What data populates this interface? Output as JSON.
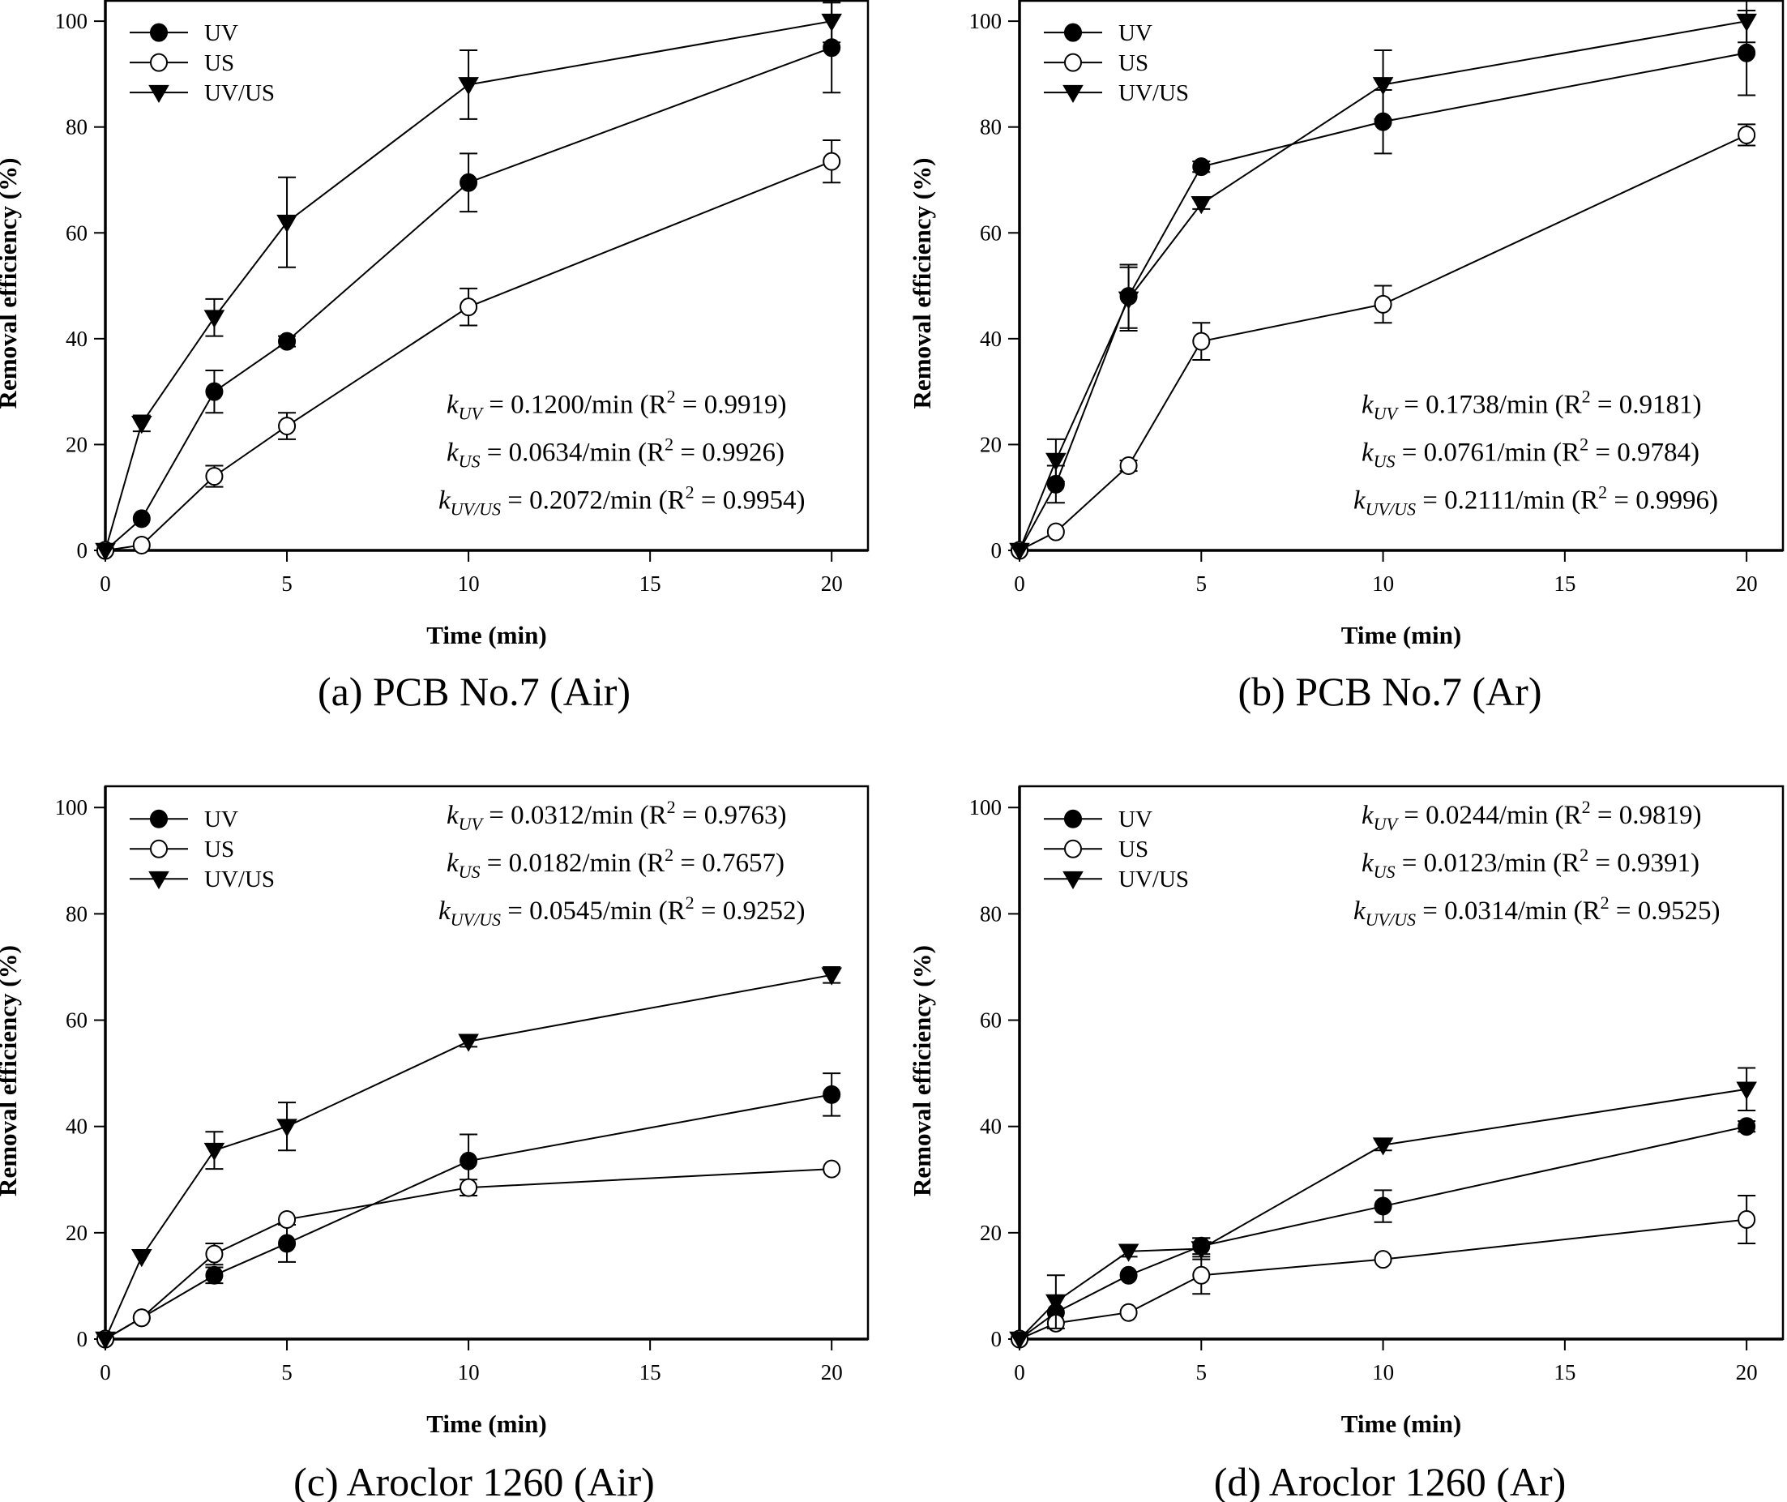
{
  "chart_data": [
    {
      "type": "line",
      "caption": "(a)  PCB  No.7  (Air)",
      "xlabel": "Time (min)",
      "ylabel": "Removal efficiency (%)",
      "xlim": [
        0,
        21
      ],
      "ylim": [
        0,
        104
      ],
      "xticks": [
        0,
        5,
        10,
        15,
        20
      ],
      "yticks": [
        0,
        20,
        40,
        60,
        80,
        100
      ],
      "legend_position": "top-left",
      "annotation_position": "bottom-right",
      "x": [
        0,
        1,
        3,
        5,
        10,
        20
      ],
      "series": [
        {
          "name": "UV",
          "marker": "filled-circle",
          "values": [
            0,
            6,
            30,
            39.5,
            69.5,
            95
          ],
          "errors": [
            0,
            0,
            4,
            1,
            5.5,
            8.5
          ]
        },
        {
          "name": "US",
          "marker": "open-circle",
          "values": [
            0,
            1,
            14,
            23.5,
            46,
            73.5
          ],
          "errors": [
            0,
            0,
            2,
            2.5,
            3.5,
            4
          ]
        },
        {
          "name": "UV/US",
          "marker": "filled-triangle-down",
          "values": [
            0,
            24,
            44,
            62,
            88,
            100
          ],
          "errors": [
            0,
            1.5,
            3.5,
            8.5,
            6.5,
            4
          ]
        }
      ],
      "annotations": [
        {
          "k_sub": "UV",
          "k": "= 0.1200/min",
          "r2": "= 0.9919)"
        },
        {
          "k_sub": "US",
          "k": "= 0.0634/min",
          "r2": "= 0.9926)"
        },
        {
          "k_sub": "UV/US",
          "k": "= 0.2072/min",
          "r2": "= 0.9954)"
        }
      ]
    },
    {
      "type": "line",
      "caption": "(b)  PCB  No.7  (Ar)",
      "xlabel": "Time (min)",
      "ylabel": "Removal efficiency (%)",
      "xlim": [
        0,
        21
      ],
      "ylim": [
        0,
        104
      ],
      "xticks": [
        0,
        5,
        10,
        15,
        20
      ],
      "yticks": [
        0,
        20,
        40,
        60,
        80,
        100
      ],
      "legend_position": "top-left",
      "annotation_position": "bottom-right",
      "x": [
        0,
        1,
        3,
        5,
        10,
        20
      ],
      "series": [
        {
          "name": "UV",
          "marker": "filled-circle",
          "values": [
            0,
            12.5,
            48,
            72.5,
            81,
            94
          ],
          "errors": [
            0,
            3.5,
            6,
            1,
            6,
            8
          ]
        },
        {
          "name": "US",
          "marker": "open-circle",
          "values": [
            0,
            3.5,
            16,
            39.5,
            46.5,
            78.5
          ],
          "errors": [
            0,
            0,
            1,
            3.5,
            3.5,
            2
          ]
        },
        {
          "name": "UV/US",
          "marker": "filled-triangle-down",
          "values": [
            0,
            17,
            47.5,
            65.5,
            88,
            100
          ],
          "errors": [
            0,
            4,
            6,
            1,
            6.5,
            4
          ]
        }
      ],
      "annotations": [
        {
          "k_sub": "UV",
          "k": "= 0.1738/min",
          "r2": "= 0.9181)"
        },
        {
          "k_sub": "US",
          "k": "= 0.0761/min",
          "r2": "= 0.9784)"
        },
        {
          "k_sub": "UV/US",
          "k": "= 0.2111/min",
          "r2": "= 0.9996)"
        }
      ]
    },
    {
      "type": "line",
      "caption": "(c)  Aroclor  1260  (Air)",
      "xlabel": "Time (min)",
      "ylabel": "Removal efficiency (%)",
      "xlim": [
        0,
        21
      ],
      "ylim": [
        0,
        104
      ],
      "xticks": [
        0,
        5,
        10,
        15,
        20
      ],
      "yticks": [
        0,
        20,
        40,
        60,
        80,
        100
      ],
      "legend_position": "top-left",
      "annotation_position": "top-right",
      "x": [
        0,
        1,
        3,
        5,
        10,
        20
      ],
      "series": [
        {
          "name": "UV",
          "marker": "filled-circle",
          "values": [
            0,
            4,
            12,
            18,
            33.5,
            46
          ],
          "errors": [
            0,
            0,
            1.5,
            3.5,
            5,
            4
          ]
        },
        {
          "name": "US",
          "marker": "open-circle",
          "values": [
            0,
            4,
            16,
            22.5,
            28.5,
            32
          ],
          "errors": [
            0,
            0,
            2,
            0,
            1.5,
            0
          ]
        },
        {
          "name": "UV/US",
          "marker": "filled-triangle-down",
          "values": [
            0,
            15.5,
            35.5,
            40,
            56,
            68.5
          ],
          "errors": [
            0,
            0,
            3.5,
            4.5,
            1,
            1.5
          ]
        }
      ],
      "annotations": [
        {
          "k_sub": "UV",
          "k": "= 0.0312/min",
          "r2": "= 0.9763)"
        },
        {
          "k_sub": "US",
          "k": "= 0.0182/min",
          "r2": "= 0.7657)"
        },
        {
          "k_sub": "UV/US",
          "k": "= 0.0545/min",
          "r2": "= 0.9252)"
        }
      ]
    },
    {
      "type": "line",
      "caption": "(d)  Aroclor  1260  (Ar)",
      "xlabel": "Time (min)",
      "ylabel": "Removal efficiency (%)",
      "xlim": [
        0,
        21
      ],
      "ylim": [
        0,
        104
      ],
      "xticks": [
        0,
        5,
        10,
        15,
        20
      ],
      "yticks": [
        0,
        20,
        40,
        60,
        80,
        100
      ],
      "legend_position": "top-left",
      "annotation_position": "top-right",
      "x": [
        0,
        1,
        3,
        5,
        10,
        20
      ],
      "series": [
        {
          "name": "UV",
          "marker": "filled-circle",
          "values": [
            0,
            5,
            12,
            17.5,
            25,
            40
          ],
          "errors": [
            0,
            0,
            0,
            1.5,
            3,
            1
          ]
        },
        {
          "name": "US",
          "marker": "open-circle",
          "values": [
            0,
            3,
            5,
            12,
            15,
            22.5
          ],
          "errors": [
            0,
            0,
            0,
            3.5,
            0,
            4.5
          ]
        },
        {
          "name": "UV/US",
          "marker": "filled-triangle-down",
          "values": [
            0,
            7,
            16.5,
            17,
            36.5,
            47
          ],
          "errors": [
            0,
            5,
            1,
            2,
            1,
            4
          ]
        }
      ],
      "annotations": [
        {
          "k_sub": "UV",
          "k": "= 0.0244/min",
          "r2": "= 0.9819)"
        },
        {
          "k_sub": "US",
          "k": "= 0.0123/min",
          "r2": "= 0.9391)"
        },
        {
          "k_sub": "UV/US",
          "k": "= 0.0314/min",
          "r2": "= 0.9525)"
        }
      ]
    }
  ],
  "labels": {
    "k_symbol": "k",
    "r2_prefix": "(R",
    "r2_sup": "2"
  }
}
